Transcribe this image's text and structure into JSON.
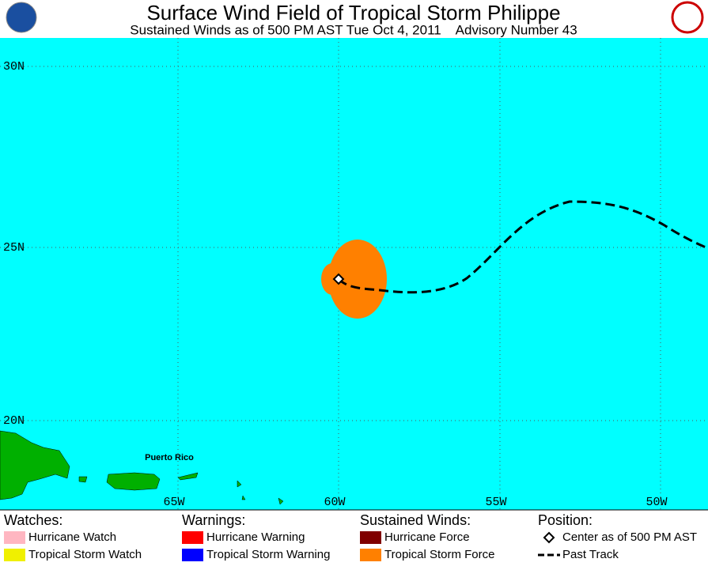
{
  "header": {
    "title": "Surface Wind Field of Tropical Storm Philippe",
    "subtitle": "Sustained Winds as of 500 PM AST Tue Oct 4, 2011    Advisory Number 43"
  },
  "map": {
    "lat_labels": [
      "30N",
      "25N",
      "20N"
    ],
    "lon_labels": [
      "65W",
      "60W",
      "55W",
      "50W"
    ],
    "places": [
      "Puerto Rico"
    ]
  },
  "legend": {
    "watches": {
      "title": "Watches:",
      "items": [
        "Hurricane Watch",
        "Tropical Storm Watch"
      ]
    },
    "warnings": {
      "title": "Warnings:",
      "items": [
        "Hurricane Warning",
        "Tropical Storm Warning"
      ]
    },
    "winds": {
      "title": "Sustained Winds:",
      "items": [
        "Hurricane Force",
        "Tropical Storm Force"
      ]
    },
    "position": {
      "title": "Position:",
      "items": [
        "Center as of 500 PM AST",
        "Past Track"
      ]
    }
  }
}
